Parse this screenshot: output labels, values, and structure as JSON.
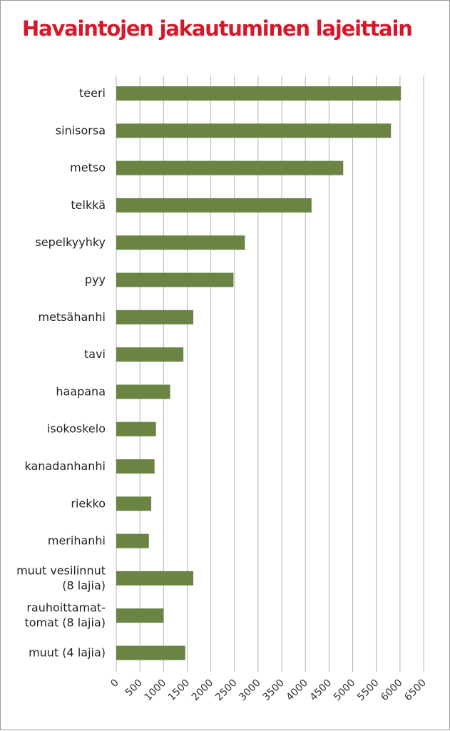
{
  "chart_data": {
    "type": "bar",
    "orientation": "horizontal",
    "title": "Havaintojen jakautuminen lajeittain",
    "xlabel": "",
    "ylabel": "",
    "categories": [
      [
        "teeri"
      ],
      [
        "sinisorsa"
      ],
      [
        "metso"
      ],
      [
        "telkkä"
      ],
      [
        "sepelkyyhky"
      ],
      [
        "pyy"
      ],
      [
        "metsähanhi"
      ],
      [
        "tavi"
      ],
      [
        "haapana"
      ],
      [
        "isokoskelo"
      ],
      [
        "kanadanhanhi"
      ],
      [
        "riekko"
      ],
      [
        "merihanhi"
      ],
      [
        "muut vesilinnut",
        "(8 lajia)"
      ],
      [
        "rauhoittamat-",
        "tomat (8 lajia)"
      ],
      [
        "muut (4 lajia)"
      ]
    ],
    "values": [
      6020,
      5810,
      4800,
      4130,
      2720,
      2480,
      1630,
      1420,
      1140,
      840,
      810,
      740,
      690,
      1630,
      1000,
      1460
    ],
    "xlim": [
      0,
      6500
    ],
    "xticks": [
      "0",
      "500",
      "1000",
      "1500",
      "2000",
      "2500",
      "3000",
      "3500",
      "4000",
      "4500",
      "5000",
      "5500",
      "6000",
      "6500"
    ],
    "grid": "vertical",
    "legend": "none",
    "colors": {
      "bar": "#6a8443",
      "title": "#d7182a",
      "grid": "#b4b4b4"
    }
  }
}
